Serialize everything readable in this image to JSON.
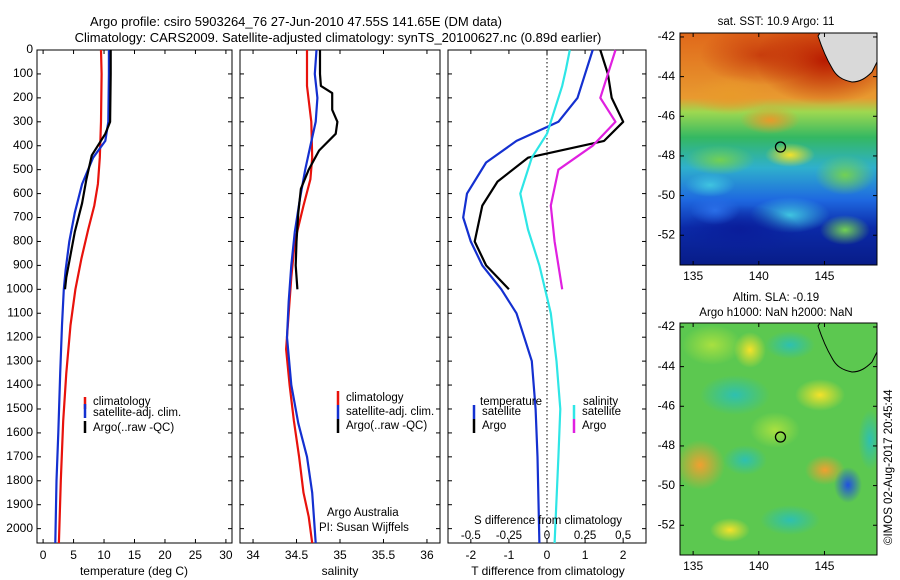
{
  "header": {
    "title_line1": "Argo profile: csiro 5903264_76 27-Jun-2010 47.55S 141.65E (DM data)",
    "title_line2": "Climatology: CARS2009. Satellite-adjusted climatology: synTS_20100627.nc (0.89d earlier)"
  },
  "chart_data": [
    {
      "type": "line",
      "panel": "temperature",
      "xlabel": "temperature (deg C)",
      "xlim": [
        -1,
        31
      ],
      "xticks": [
        0,
        5,
        10,
        15,
        20,
        25,
        30
      ],
      "xtick_labels": [
        "0",
        "5",
        "10",
        "15",
        "20",
        "25",
        "30"
      ],
      "ylim": [
        2060,
        0
      ],
      "yticks": [
        0,
        100,
        200,
        300,
        400,
        500,
        600,
        700,
        800,
        900,
        1000,
        1100,
        1200,
        1300,
        1400,
        1500,
        1600,
        1700,
        1800,
        1900,
        2000
      ],
      "legend_position": "lower-center",
      "series": [
        {
          "name": "climatology",
          "color": "#e8120c",
          "points": [
            [
              9.5,
              0
            ],
            [
              9.6,
              100
            ],
            [
              9.5,
              300
            ],
            [
              9.3,
              450
            ],
            [
              9.0,
              560
            ],
            [
              8.4,
              650
            ],
            [
              7.4,
              750
            ],
            [
              6.3,
              870
            ],
            [
              5.3,
              1000
            ],
            [
              4.5,
              1150
            ],
            [
              3.8,
              1350
            ],
            [
              3.3,
              1550
            ],
            [
              2.9,
              1800
            ],
            [
              2.6,
              2060
            ]
          ]
        },
        {
          "name": "satellite-adj. clim.",
          "color": "#1430d0",
          "points": [
            [
              10.8,
              0
            ],
            [
              10.8,
              100
            ],
            [
              10.7,
              300
            ],
            [
              10.2,
              380
            ],
            [
              8.2,
              450
            ],
            [
              6.4,
              560
            ],
            [
              5.2,
              680
            ],
            [
              4.3,
              800
            ],
            [
              3.7,
              920
            ],
            [
              3.4,
              1000
            ],
            [
              3.1,
              1150
            ],
            [
              2.8,
              1350
            ],
            [
              2.5,
              1600
            ],
            [
              2.2,
              1800
            ],
            [
              2.0,
              2060
            ]
          ]
        },
        {
          "name": "Argo(..raw -QC)",
          "color": "#000000",
          "points": [
            [
              11.1,
              0
            ],
            [
              11.1,
              100
            ],
            [
              11.0,
              300
            ],
            [
              10.2,
              350
            ],
            [
              8.0,
              440
            ],
            [
              7.1,
              540
            ],
            [
              6.4,
              640
            ],
            [
              5.2,
              760
            ],
            [
              4.4,
              870
            ],
            [
              3.8,
              950
            ],
            [
              3.6,
              1000
            ]
          ]
        }
      ]
    },
    {
      "type": "line",
      "panel": "salinity",
      "xlabel": "salinity",
      "xlim": [
        33.85,
        36.15
      ],
      "xticks": [
        34,
        34.5,
        35,
        35.5,
        36
      ],
      "xtick_labels": [
        "34",
        "34.5",
        "35",
        "35.5",
        "36"
      ],
      "ylim": [
        2060,
        0
      ],
      "legend_position": "lower-center",
      "series": [
        {
          "name": "climatology",
          "color": "#e8120c",
          "points": [
            [
              34.62,
              0
            ],
            [
              34.62,
              150
            ],
            [
              34.67,
              300
            ],
            [
              34.68,
              450
            ],
            [
              34.66,
              540
            ],
            [
              34.58,
              650
            ],
            [
              34.48,
              800
            ],
            [
              34.44,
              950
            ],
            [
              34.41,
              1100
            ],
            [
              34.38,
              1250
            ],
            [
              34.42,
              1400
            ],
            [
              34.47,
              1550
            ],
            [
              34.53,
              1700
            ],
            [
              34.58,
              1850
            ],
            [
              34.64,
              1950
            ],
            [
              34.68,
              2060
            ]
          ]
        },
        {
          "name": "satellite-adj. clim.",
          "color": "#1430d0",
          "points": [
            [
              34.73,
              0
            ],
            [
              34.71,
              100
            ],
            [
              34.74,
              200
            ],
            [
              34.72,
              300
            ],
            [
              34.66,
              400
            ],
            [
              34.6,
              500
            ],
            [
              34.54,
              620
            ],
            [
              34.48,
              760
            ],
            [
              34.44,
              900
            ],
            [
              34.41,
              1050
            ],
            [
              34.39,
              1200
            ],
            [
              34.44,
              1400
            ],
            [
              34.52,
              1560
            ],
            [
              34.62,
              1700
            ],
            [
              34.68,
              1850
            ],
            [
              34.72,
              2060
            ]
          ]
        },
        {
          "name": "Argo(..raw -QC)",
          "color": "#000000",
          "points": [
            [
              34.77,
              0
            ],
            [
              34.77,
              100
            ],
            [
              34.78,
              150
            ],
            [
              34.91,
              180
            ],
            [
              34.91,
              250
            ],
            [
              34.97,
              300
            ],
            [
              34.95,
              350
            ],
            [
              34.76,
              420
            ],
            [
              34.64,
              500
            ],
            [
              34.55,
              580
            ],
            [
              34.52,
              680
            ],
            [
              34.5,
              800
            ],
            [
              34.49,
              900
            ],
            [
              34.51,
              1000
            ]
          ]
        }
      ],
      "annotation_lines": [
        "Argo Australia",
        "PI: Susan Wijffels"
      ]
    },
    {
      "type": "line",
      "panel": "difference",
      "xlabel": "T difference from climatology",
      "xlim": [
        -2.6,
        2.6
      ],
      "xticks": [
        -2,
        -1,
        0,
        1,
        2
      ],
      "xtick_labels": [
        "-2",
        "-1",
        "0",
        "1",
        "2"
      ],
      "secondary_xlabel": "S difference from climatology",
      "secondary_xtick_labels": [
        "-0.5",
        "-0.25",
        "0",
        "0.25",
        "0.5"
      ],
      "ylim": [
        2060,
        0
      ],
      "legend_temperature_label": "temperature",
      "legend_salinity_label": "salinity",
      "series": [
        {
          "name": "satellite",
          "group": "temperature",
          "color": "#1430d0",
          "points": [
            [
              1.2,
              0
            ],
            [
              1.1,
              50
            ],
            [
              1.0,
              100
            ],
            [
              0.8,
              200
            ],
            [
              0.3,
              300
            ],
            [
              -0.8,
              380
            ],
            [
              -1.6,
              470
            ],
            [
              -2.1,
              600
            ],
            [
              -2.2,
              700
            ],
            [
              -2.0,
              800
            ],
            [
              -1.7,
              900
            ],
            [
              -1.2,
              1000
            ],
            [
              -0.8,
              1100
            ],
            [
              -0.6,
              1200
            ],
            [
              -0.4,
              1300
            ],
            [
              -0.3,
              1500
            ],
            [
              -0.25,
              1700
            ],
            [
              -0.2,
              2060
            ]
          ]
        },
        {
          "name": "Argo",
          "group": "temperature",
          "color": "#000000",
          "points": [
            [
              1.4,
              0
            ],
            [
              1.5,
              50
            ],
            [
              1.6,
              100
            ],
            [
              1.7,
              200
            ],
            [
              2.0,
              300
            ],
            [
              1.5,
              380
            ],
            [
              -0.5,
              450
            ],
            [
              -1.3,
              550
            ],
            [
              -1.7,
              650
            ],
            [
              -1.9,
              800
            ],
            [
              -1.6,
              900
            ],
            [
              -1.0,
              1000
            ]
          ]
        },
        {
          "name": "satellite",
          "group": "salinity",
          "color": "#2ee6e6",
          "points": [
            [
              0.6,
              0
            ],
            [
              0.5,
              80
            ],
            [
              0.4,
              150
            ],
            [
              0.2,
              250
            ],
            [
              0.0,
              350
            ],
            [
              -0.4,
              450
            ],
            [
              -0.7,
              600
            ],
            [
              -0.5,
              750
            ],
            [
              -0.2,
              900
            ],
            [
              0.1,
              1100
            ],
            [
              0.25,
              1300
            ],
            [
              0.35,
              1500
            ],
            [
              0.3,
              1700
            ],
            [
              0.2,
              2060
            ]
          ]
        },
        {
          "name": "Argo",
          "group": "salinity",
          "color": "#e020e0",
          "points": [
            [
              1.8,
              0
            ],
            [
              1.6,
              100
            ],
            [
              1.4,
              200
            ],
            [
              1.8,
              300
            ],
            [
              1.2,
              400
            ],
            [
              0.3,
              500
            ],
            [
              0.1,
              650
            ],
            [
              0.2,
              800
            ],
            [
              0.4,
              1000
            ]
          ]
        }
      ]
    },
    {
      "type": "heatmap",
      "panel": "sst_map",
      "title": "sat. SST: 10.9  Argo: 11",
      "xlim": [
        134,
        149
      ],
      "ylim": [
        -53.5,
        -41.8
      ],
      "xticks": [
        135,
        140,
        145
      ],
      "yticks": [
        -42,
        -44,
        -46,
        -48,
        -50,
        -52
      ],
      "ytick_labels": [
        "-42",
        "-44",
        "-46",
        "-48",
        "-50",
        "-52"
      ],
      "marker": {
        "lon": 141.65,
        "lat": -47.55
      }
    },
    {
      "type": "heatmap",
      "panel": "sla_map",
      "title_line1": "Altim. SLA: -0.19",
      "title_line2": "Argo h1000: NaN h2000: NaN",
      "xlim": [
        134,
        149
      ],
      "ylim": [
        -53.5,
        -41.8
      ],
      "xticks": [
        135,
        140,
        145
      ],
      "yticks": [
        -42,
        -44,
        -46,
        -48,
        -50,
        -52
      ],
      "ytick_labels": [
        "-42",
        "-44",
        "-46",
        "-48",
        "-50",
        "-52"
      ],
      "marker": {
        "lon": 141.65,
        "lat": -47.55
      }
    }
  ],
  "footer": {
    "credit": "©IMOS 02-Aug-2017 20:45:44"
  }
}
